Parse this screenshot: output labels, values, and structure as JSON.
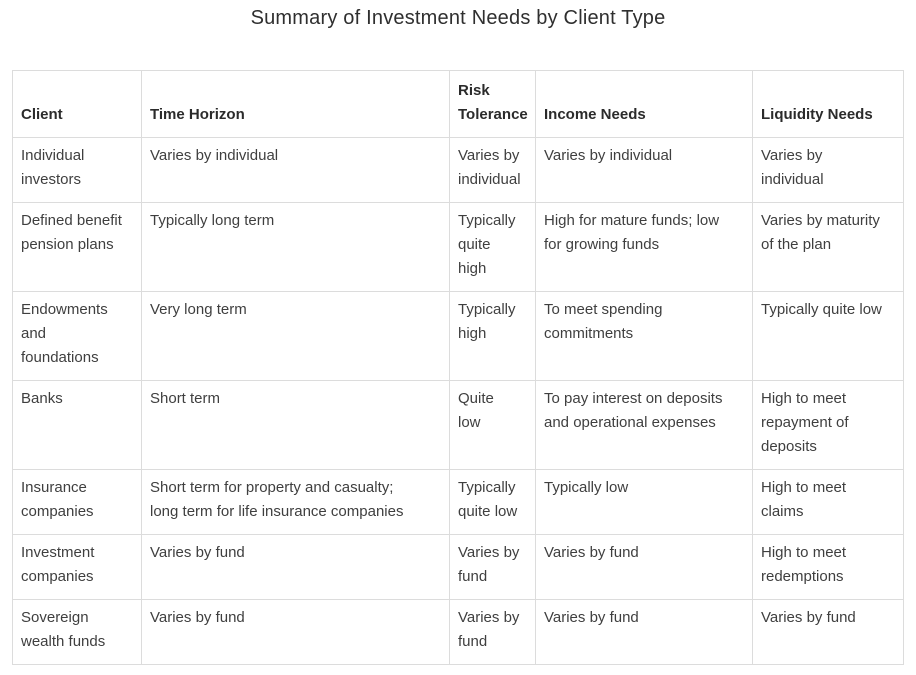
{
  "page_title": "Summary of Investment Needs by Client Type",
  "colors": {
    "background": "#ffffff",
    "table_border": "#dcdcdc",
    "body_text": "#3f3f3f",
    "header_text": "#2b2b2b",
    "title_text": "#2f2f2f"
  },
  "table": {
    "columns": [
      "Client",
      "Time Horizon",
      "Risk\nTolerance",
      "Income Needs",
      "Liquidity Needs"
    ],
    "rows": [
      {
        "cells": [
          "Individual\ninvestors",
          "Varies by individual",
          "Varies by\nindividual",
          "Varies by individual",
          "Varies by\nindividual"
        ]
      },
      {
        "cells": [
          "Defined benefit\npension plans",
          "Typically long term",
          "Typically\nquite\nhigh",
          "High for mature funds; low\nfor growing funds",
          "Varies by maturity\nof the plan"
        ]
      },
      {
        "cells": [
          "Endowments\nand\nfoundations",
          "Very long term",
          "Typically\nhigh",
          "To meet spending\ncommitments",
          "Typically quite low"
        ]
      },
      {
        "cells": [
          "Banks",
          "Short term",
          "Quite\nlow",
          "To pay interest on deposits\nand operational expenses",
          "High to meet\nrepayment of\ndeposits"
        ]
      },
      {
        "cells": [
          "Insurance\ncompanies",
          "Short term for property and casualty;\nlong term for life insurance companies",
          "Typically\nquite low",
          "Typically low",
          "High to meet\nclaims"
        ]
      },
      {
        "cells": [
          "Investment\ncompanies",
          "Varies by fund",
          "Varies by\nfund",
          "Varies by fund",
          "High to meet\nredemptions"
        ]
      },
      {
        "cells": [
          "Sovereign\nwealth funds",
          "Varies by fund",
          "Varies by\nfund",
          "Varies by fund",
          "Varies by fund"
        ]
      }
    ]
  }
}
